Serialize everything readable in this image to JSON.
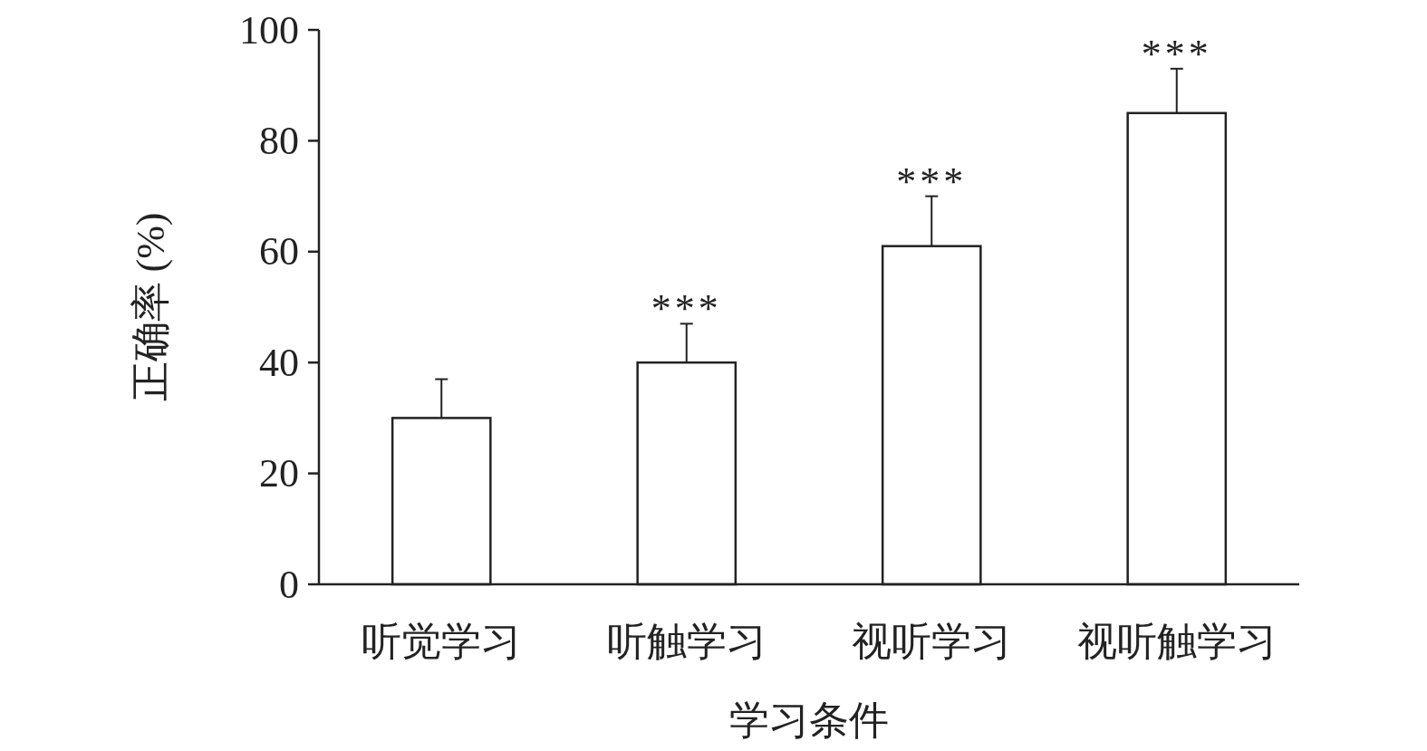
{
  "chart_data": {
    "type": "bar",
    "xlabel": "学习条件",
    "ylabel": "正确率 (%)",
    "categories": [
      "听觉学习",
      "听触学习",
      "视听学习",
      "视听触学习"
    ],
    "values": [
      30,
      40,
      61,
      85
    ],
    "errors": [
      [
        30,
        37
      ],
      [
        40,
        47
      ],
      [
        61,
        70
      ],
      [
        85,
        93
      ]
    ],
    "color": "#ffffff",
    "ylim": [
      0,
      100
    ],
    "yticks": [
      0,
      20,
      40,
      60,
      80,
      100
    ],
    "grid": false,
    "annotations": [
      "***",
      "***",
      "***"
    ]
  }
}
